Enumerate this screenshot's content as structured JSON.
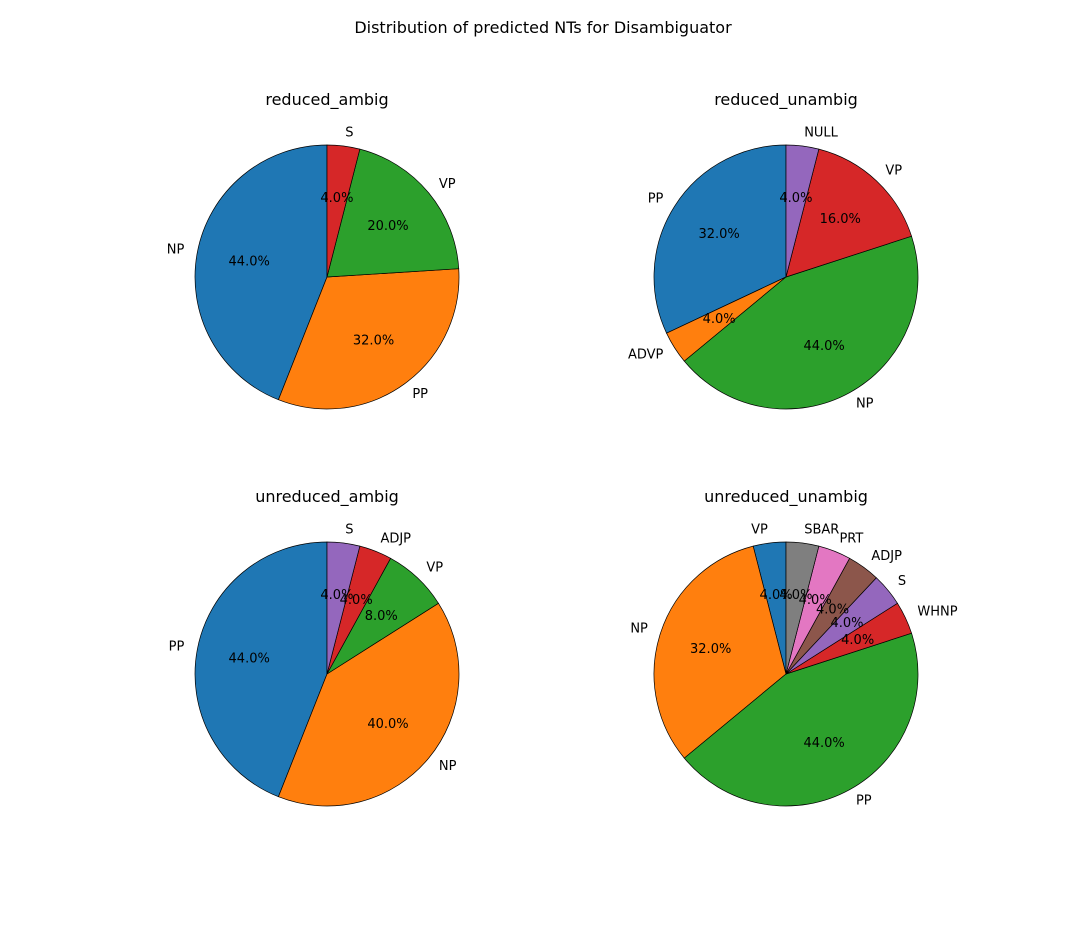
{
  "figure": {
    "title": "Distribution of predicted NTs for Disambiguator"
  },
  "chart_data": [
    {
      "type": "pie",
      "title": "reduced_ambig",
      "start_angle": 90,
      "direction": "counterclockwise",
      "slices": [
        {
          "label": "NP",
          "value": 44.0,
          "pct": "44.0%",
          "color": "#1f77b4"
        },
        {
          "label": "PP",
          "value": 32.0,
          "pct": "32.0%",
          "color": "#ff7f0e"
        },
        {
          "label": "VP",
          "value": 20.0,
          "pct": "20.0%",
          "color": "#2ca02c"
        },
        {
          "label": "S",
          "value": 4.0,
          "pct": "4.0%",
          "color": "#d62728"
        }
      ]
    },
    {
      "type": "pie",
      "title": "reduced_unambig",
      "start_angle": 90,
      "direction": "counterclockwise",
      "slices": [
        {
          "label": "PP",
          "value": 32.0,
          "pct": "32.0%",
          "color": "#1f77b4"
        },
        {
          "label": "ADVP",
          "value": 4.0,
          "pct": "4.0%",
          "color": "#ff7f0e"
        },
        {
          "label": "NP",
          "value": 44.0,
          "pct": "44.0%",
          "color": "#2ca02c"
        },
        {
          "label": "VP",
          "value": 16.0,
          "pct": "16.0%",
          "color": "#d62728"
        },
        {
          "label": "NULL",
          "value": 4.0,
          "pct": "4.0%",
          "color": "#9467bd"
        }
      ]
    },
    {
      "type": "pie",
      "title": "unreduced_ambig",
      "start_angle": 90,
      "direction": "counterclockwise",
      "slices": [
        {
          "label": "PP",
          "value": 44.0,
          "pct": "44.0%",
          "color": "#1f77b4"
        },
        {
          "label": "NP",
          "value": 40.0,
          "pct": "40.0%",
          "color": "#ff7f0e"
        },
        {
          "label": "VP",
          "value": 8.0,
          "pct": "8.0%",
          "color": "#2ca02c"
        },
        {
          "label": "ADJP",
          "value": 4.0,
          "pct": "4.0%",
          "color": "#d62728"
        },
        {
          "label": "S",
          "value": 4.0,
          "pct": "4.0%",
          "color": "#9467bd"
        }
      ]
    },
    {
      "type": "pie",
      "title": "unreduced_unambig",
      "start_angle": 90,
      "direction": "counterclockwise",
      "slices": [
        {
          "label": "VP",
          "value": 4.0,
          "pct": "4.0%",
          "color": "#1f77b4"
        },
        {
          "label": "NP",
          "value": 32.0,
          "pct": "32.0%",
          "color": "#ff7f0e"
        },
        {
          "label": "PP",
          "value": 44.0,
          "pct": "44.0%",
          "color": "#2ca02c"
        },
        {
          "label": "WHNP",
          "value": 4.0,
          "pct": "4.0%",
          "color": "#d62728"
        },
        {
          "label": "S",
          "value": 4.0,
          "pct": "4.0%",
          "color": "#9467bd"
        },
        {
          "label": "ADJP",
          "value": 4.0,
          "pct": "4.0%",
          "color": "#8c564b"
        },
        {
          "label": "PRT",
          "value": 4.0,
          "pct": "4.0%",
          "color": "#e377c2"
        },
        {
          "label": "SBAR",
          "value": 4.0,
          "pct": "4.0%",
          "color": "#7f7f7f"
        }
      ]
    }
  ]
}
